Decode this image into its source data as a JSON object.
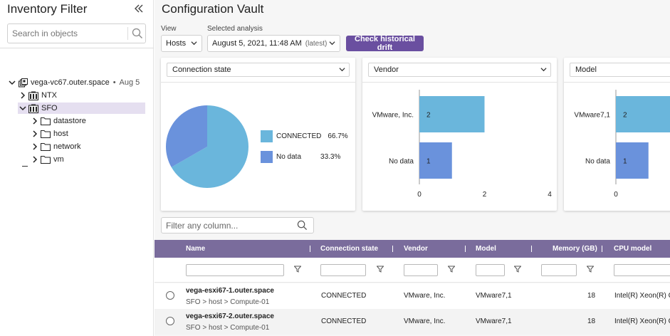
{
  "sidebar": {
    "title": "Inventory Filter",
    "collapse_icon": "double-chevron-left-icon",
    "search_placeholder": "Search in objects",
    "tree": {
      "root": {
        "label": "vega-vc67.outer.space",
        "bullet": "•",
        "date": "Aug 5"
      },
      "items": [
        {
          "label": "NTX"
        },
        {
          "label": "SFO"
        },
        {
          "label": "datastore"
        },
        {
          "label": "host"
        },
        {
          "label": "network"
        },
        {
          "label": "vm"
        }
      ]
    }
  },
  "main": {
    "title": "Configuration Vault",
    "view_label": "View",
    "view_value": "Hosts",
    "analysis_label": "Selected analysis",
    "analysis_value": "August 5, 2021, 11:48 AM",
    "analysis_tag": "(latest)",
    "drift_button": "Check historical drift",
    "cards": [
      {
        "selector": "Connection state"
      },
      {
        "selector": "Vendor"
      },
      {
        "selector": "Model"
      }
    ],
    "filter_placeholder": "Filter any column..."
  },
  "chart_data": [
    {
      "type": "pie",
      "categories": [
        "CONNECTED",
        "No data"
      ],
      "values": [
        66.7,
        33.3
      ],
      "labels": [
        "66.7%",
        "33.3%"
      ],
      "colors": [
        "#6ab6dc",
        "#6a92dc"
      ],
      "legend": "right"
    },
    {
      "type": "bar",
      "orientation": "horizontal",
      "categories": [
        "VMware, Inc.",
        "No data"
      ],
      "values": [
        2,
        1
      ],
      "xlim": [
        0,
        4
      ],
      "xticks": [
        "0",
        "2",
        "4"
      ],
      "colors": [
        "#6ab6dc",
        "#6a92dc"
      ]
    },
    {
      "type": "bar",
      "orientation": "horizontal",
      "categories": [
        "VMware7,1",
        "No data"
      ],
      "values": [
        2,
        1
      ],
      "xlim": [
        0,
        4
      ],
      "xticks": [
        "0"
      ],
      "colors": [
        "#6ab6dc",
        "#6a92dc"
      ]
    }
  ],
  "table": {
    "headers": [
      "Name",
      "Connection state",
      "Vendor",
      "Model",
      "Memory (GB)",
      "CPU model"
    ],
    "rows": [
      {
        "name": "vega-esxi67-1.outer.space",
        "path": "SFO > host > Compute-01",
        "state": "CONNECTED",
        "vendor": "VMware, Inc.",
        "model": "VMware7,1",
        "memory": "18",
        "cpu": "Intel(R) Xeon(R) C"
      },
      {
        "name": "vega-esxi67-2.outer.space",
        "path": "SFO > host > Compute-01",
        "state": "CONNECTED",
        "vendor": "VMware, Inc.",
        "model": "VMware7,1",
        "memory": "18",
        "cpu": "Intel(R) Xeon(R) C"
      }
    ]
  },
  "colors": {
    "accent": "#6a4fa0",
    "header": "#7a6c9c",
    "selected": "#e5dff0",
    "series_a": "#6ab6dc",
    "series_b": "#6a92dc"
  }
}
